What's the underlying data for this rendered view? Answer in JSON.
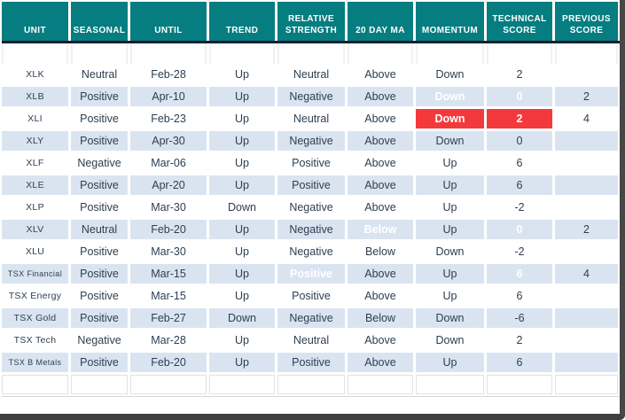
{
  "table": {
    "columns": [
      {
        "key": "unit",
        "label": "UNIT"
      },
      {
        "key": "seasonal",
        "label": "SEASONAL"
      },
      {
        "key": "until",
        "label": "UNTIL"
      },
      {
        "key": "trend",
        "label": "TREND"
      },
      {
        "key": "relative_strength",
        "label": "RELATIVE STRENGTH"
      },
      {
        "key": "ma20",
        "label": "20 DAY MA"
      },
      {
        "key": "momentum",
        "label": "MOMENTUM"
      },
      {
        "key": "technical_score",
        "label": "TECHNICAL SCORE"
      },
      {
        "key": "previous_score",
        "label": "PREVIOUS SCORE"
      }
    ],
    "rows": [
      {
        "unit": "XLK",
        "seasonal": "Neutral",
        "until": "Feb-28",
        "trend": "Up",
        "relative_strength": "Neutral",
        "ma20": "Above",
        "momentum": "Down",
        "technical_score": "2",
        "previous_score": "",
        "styles": {}
      },
      {
        "unit": "XLB",
        "seasonal": "Positive",
        "until": "Apr-10",
        "trend": "Up",
        "relative_strength": "Negative",
        "ma20": "Above",
        "momentum": "Down",
        "technical_score": "0",
        "previous_score": "2",
        "styles": {
          "momentum": "red",
          "technical_score": "red"
        }
      },
      {
        "unit": "XLI",
        "seasonal": "Positive",
        "until": "Feb-23",
        "trend": "Up",
        "relative_strength": "Neutral",
        "ma20": "Above",
        "momentum": "Down",
        "technical_score": "2",
        "previous_score": "4",
        "styles": {
          "momentum": "red",
          "technical_score": "red"
        }
      },
      {
        "unit": "XLY",
        "seasonal": "Positive",
        "until": "Apr-30",
        "trend": "Up",
        "relative_strength": "Negative",
        "ma20": "Above",
        "momentum": "Down",
        "technical_score": "0",
        "previous_score": "",
        "styles": {}
      },
      {
        "unit": "XLF",
        "seasonal": "Negative",
        "until": "Mar-06",
        "trend": "Up",
        "relative_strength": "Positive",
        "ma20": "Above",
        "momentum": "Up",
        "technical_score": "6",
        "previous_score": "",
        "styles": {}
      },
      {
        "unit": "XLE",
        "seasonal": "Positive",
        "until": "Apr-20",
        "trend": "Up",
        "relative_strength": "Positive",
        "ma20": "Above",
        "momentum": "Up",
        "technical_score": "6",
        "previous_score": "",
        "styles": {}
      },
      {
        "unit": "XLP",
        "seasonal": "Positive",
        "until": "Mar-30",
        "trend": "Down",
        "relative_strength": "Negative",
        "ma20": "Above",
        "momentum": "Up",
        "technical_score": "-2",
        "previous_score": "",
        "styles": {}
      },
      {
        "unit": "XLV",
        "seasonal": "Neutral",
        "until": "Feb-20",
        "trend": "Up",
        "relative_strength": "Negative",
        "ma20": "Below",
        "momentum": "Up",
        "technical_score": "0",
        "previous_score": "2",
        "styles": {
          "ma20": "red",
          "technical_score": "red"
        }
      },
      {
        "unit": "XLU",
        "seasonal": "Positive",
        "until": "Mar-30",
        "trend": "Up",
        "relative_strength": "Negative",
        "ma20": "Below",
        "momentum": "Down",
        "technical_score": "-2",
        "previous_score": "",
        "styles": {}
      },
      {
        "unit": "TSX Financial",
        "seasonal": "Positive",
        "until": "Mar-15",
        "trend": "Up",
        "relative_strength": "Positive",
        "ma20": "Above",
        "momentum": "Up",
        "technical_score": "6",
        "previous_score": "4",
        "styles": {
          "relative_strength": "green",
          "technical_score": "green"
        }
      },
      {
        "unit": "TSX Energy",
        "seasonal": "Positive",
        "until": "Mar-15",
        "trend": "Up",
        "relative_strength": "Positive",
        "ma20": "Above",
        "momentum": "Up",
        "technical_score": "6",
        "previous_score": "",
        "styles": {}
      },
      {
        "unit": "TSX Gold",
        "seasonal": "Positive",
        "until": "Feb-27",
        "trend": "Down",
        "relative_strength": "Negative",
        "ma20": "Below",
        "momentum": "Down",
        "technical_score": "-6",
        "previous_score": "",
        "styles": {}
      },
      {
        "unit": "TSX Tech",
        "seasonal": "Negative",
        "until": "Mar-28",
        "trend": "Up",
        "relative_strength": "Neutral",
        "ma20": "Above",
        "momentum": "Down",
        "technical_score": "2",
        "previous_score": "",
        "styles": {}
      },
      {
        "unit": "TSX B Metals",
        "seasonal": "Positive",
        "until": "Feb-20",
        "trend": "Up",
        "relative_strength": "Positive",
        "ma20": "Above",
        "momentum": "Up",
        "technical_score": "6",
        "previous_score": "",
        "styles": {}
      }
    ]
  },
  "colors": {
    "header_bg": "#067d80",
    "header_text": "#ffffff",
    "divider": "#14202f",
    "row_alt_bg": "#dae4f1",
    "body_text": "#2d3e50",
    "highlight_red": "#f4393d",
    "highlight_green": "#8ec540",
    "frame_border": "#474747"
  }
}
